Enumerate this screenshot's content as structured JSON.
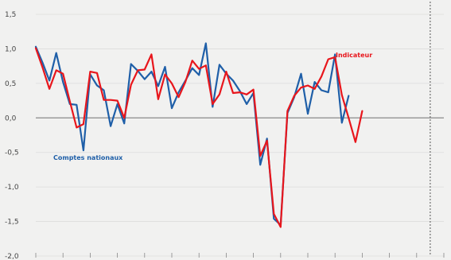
{
  "chart_data": {
    "type": "line",
    "x_count": 61,
    "ylim": [
      -2.0,
      1.5
    ],
    "y_ticks": [
      "1,5",
      "1,0",
      "0,5",
      "0,0",
      "-0,5",
      "-1,0",
      "-1,5",
      "-2,0"
    ],
    "y_tick_values": [
      1.5,
      1.0,
      0.5,
      0.0,
      -0.5,
      -1.0,
      -1.5,
      -2.0
    ],
    "grid": true,
    "forecast_start_index": 58,
    "series": [
      {
        "name": "Comptes nationaux",
        "color": "#1f5fa8",
        "values": [
          1.03,
          0.8,
          0.54,
          0.94,
          0.52,
          0.2,
          0.19,
          -0.47,
          0.63,
          0.47,
          0.4,
          -0.12,
          0.2,
          -0.08,
          0.78,
          0.68,
          0.56,
          0.67,
          0.46,
          0.74,
          0.14,
          0.37,
          0.54,
          0.72,
          0.62,
          1.08,
          0.16,
          0.77,
          0.64,
          0.54,
          0.39,
          0.2,
          0.36,
          -0.68,
          -0.3,
          -1.46,
          -1.55,
          0.07,
          0.3,
          0.64,
          0.06,
          0.52,
          0.4,
          0.37,
          0.92,
          -0.07,
          0.32
        ]
      },
      {
        "name": "Indicateur",
        "color": "#e8161c",
        "values": [
          1.01,
          0.73,
          0.42,
          0.69,
          0.64,
          0.24,
          -0.14,
          -0.09,
          0.67,
          0.65,
          0.26,
          0.26,
          0.25,
          0.0,
          0.48,
          0.69,
          0.7,
          0.92,
          0.27,
          0.63,
          0.5,
          0.3,
          0.52,
          0.83,
          0.71,
          0.76,
          0.2,
          0.34,
          0.67,
          0.36,
          0.37,
          0.34,
          0.41,
          -0.55,
          -0.33,
          -1.39,
          -1.58,
          0.1,
          0.32,
          0.44,
          0.47,
          0.42,
          0.6,
          0.85,
          0.88,
          0.33,
          0.0,
          -0.35,
          0.1
        ]
      }
    ],
    "annotations": [
      {
        "text": "Indicateur",
        "series": "Indicateur"
      },
      {
        "text": "Comptes nationaux",
        "series": "Comptes nationaux"
      }
    ]
  }
}
